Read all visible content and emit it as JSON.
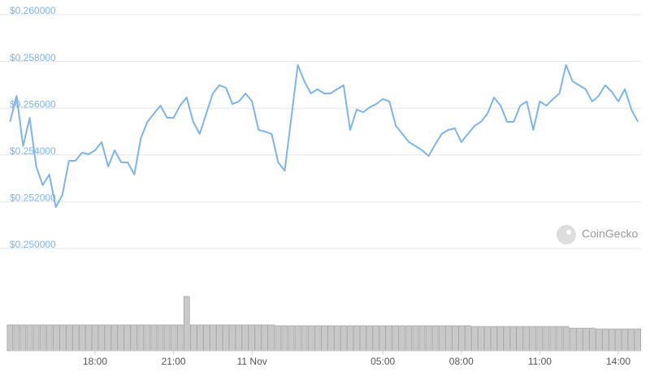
{
  "chart_data": {
    "type": "line",
    "categories": [
      null,
      null,
      null,
      null,
      null,
      null,
      null,
      null,
      null,
      null,
      null,
      null,
      null,
      "18:00",
      null,
      null,
      null,
      null,
      null,
      null,
      null,
      null,
      null,
      null,
      null,
      "21:00",
      null,
      null,
      null,
      null,
      null,
      null,
      null,
      null,
      null,
      null,
      null,
      "11 Nov",
      null,
      null,
      null,
      null,
      null,
      null,
      null,
      null,
      null,
      null,
      null,
      null,
      null,
      null,
      null,
      null,
      null,
      null,
      null,
      "05:00",
      null,
      null,
      null,
      null,
      null,
      null,
      null,
      null,
      null,
      null,
      null,
      "08:00",
      null,
      null,
      null,
      null,
      null,
      null,
      null,
      null,
      null,
      null,
      null,
      "11:00",
      null,
      null,
      null,
      null,
      null,
      null,
      null,
      null,
      null,
      null,
      null,
      "14:00",
      null,
      null,
      null
    ],
    "values": [
      0.25528,
      0.25639,
      0.25424,
      0.25545,
      0.25337,
      0.25257,
      0.25302,
      0.25163,
      0.25215,
      0.25361,
      0.25361,
      0.25396,
      0.25389,
      0.25406,
      0.25441,
      0.25337,
      0.25406,
      0.25354,
      0.25354,
      0.25302,
      0.25458,
      0.25528,
      0.25563,
      0.25597,
      0.25545,
      0.25545,
      0.25597,
      0.25632,
      0.25528,
      0.25476,
      0.25563,
      0.25649,
      0.25684,
      0.25674,
      0.25604,
      0.25615,
      0.25649,
      0.25615,
      0.25493,
      0.25486,
      0.25476,
      0.25354,
      0.25319,
      0.25545,
      0.25771,
      0.25701,
      0.25649,
      0.25667,
      0.25649,
      0.25649,
      0.25667,
      0.25684,
      0.25493,
      0.2558,
      0.25569,
      0.2559,
      0.25604,
      0.25625,
      0.25615,
      0.2551,
      0.25476,
      0.25441,
      0.25424,
      0.25406,
      0.25382,
      0.25431,
      0.25476,
      0.25493,
      0.255,
      0.25441,
      0.25476,
      0.2551,
      0.25528,
      0.25563,
      0.25632,
      0.25597,
      0.25528,
      0.25528,
      0.25597,
      0.25615,
      0.25493,
      0.25615,
      0.25597,
      0.25625,
      0.25649,
      0.25771,
      0.25701,
      0.25684,
      0.25667,
      0.25615,
      0.25639,
      0.25684,
      0.25656,
      0.25615,
      0.25667,
      0.2558,
      0.25528
    ],
    "color": "#7cb5ec",
    "volume": [
      32,
      32,
      32,
      32,
      32,
      32,
      32,
      32,
      32,
      32,
      32,
      32,
      32,
      32,
      32,
      32,
      32,
      32,
      32,
      32,
      32,
      32,
      32,
      32,
      32,
      32,
      32,
      67,
      32,
      32,
      32,
      32,
      32,
      32,
      32,
      32,
      32,
      32,
      32,
      32,
      32,
      31,
      31,
      31,
      31,
      31,
      31,
      31,
      31,
      31,
      31,
      31,
      31,
      31,
      31,
      31,
      31,
      31,
      31,
      31,
      31,
      31,
      31,
      31,
      31,
      31,
      31,
      31,
      31,
      31,
      31,
      30,
      30,
      30,
      30,
      30,
      30,
      30,
      30,
      30,
      30,
      30,
      30,
      30,
      30,
      30,
      28,
      28,
      28,
      28,
      27,
      27,
      27,
      27,
      27,
      27,
      27
    ],
    "volume_color": "#c8c8c8",
    "ylim": [
      0.25,
      0.26
    ],
    "yticks": [
      {
        "value": 0.25,
        "label": "$0.250000"
      },
      {
        "value": 0.252,
        "label": "$0.252000"
      },
      {
        "value": 0.254,
        "label": "$0.254000"
      },
      {
        "value": 0.256,
        "label": "$0.256000"
      },
      {
        "value": 0.258,
        "label": "$0.258000"
      },
      {
        "value": 0.26,
        "label": "$0.260000"
      }
    ],
    "grid": true,
    "watermark": "CoinGecko"
  }
}
